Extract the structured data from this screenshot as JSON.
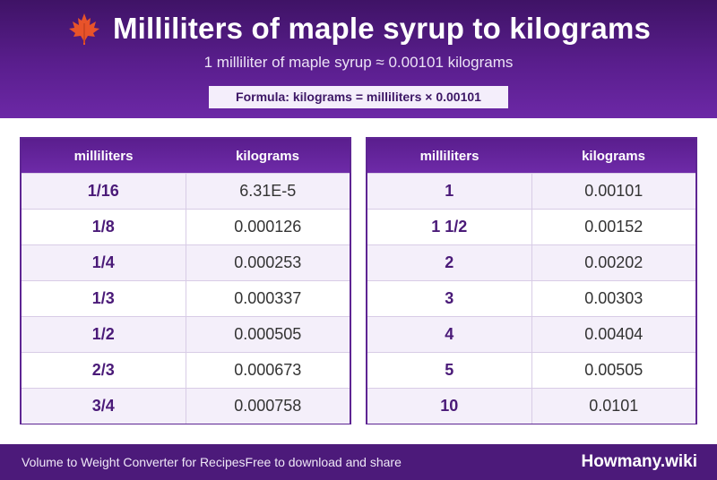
{
  "header": {
    "icon": "maple-leaf-icon",
    "title": "Milliliters of maple syrup to kilograms",
    "subtitle": "1 milliliter of maple syrup ≈ 0.00101 kilograms",
    "formula": "Formula: kilograms = milliliters × 0.00101"
  },
  "tables": [
    {
      "headers": [
        "milliliters",
        "kilograms"
      ],
      "rows": [
        [
          "1/16",
          "6.31E-5"
        ],
        [
          "1/8",
          "0.000126"
        ],
        [
          "1/4",
          "0.000253"
        ],
        [
          "1/3",
          "0.000337"
        ],
        [
          "1/2",
          "0.000505"
        ],
        [
          "2/3",
          "0.000673"
        ],
        [
          "3/4",
          "0.000758"
        ]
      ]
    },
    {
      "headers": [
        "milliliters",
        "kilograms"
      ],
      "rows": [
        [
          "1",
          "0.00101"
        ],
        [
          "1 1/2",
          "0.00152"
        ],
        [
          "2",
          "0.00202"
        ],
        [
          "3",
          "0.00303"
        ],
        [
          "4",
          "0.00404"
        ],
        [
          "5",
          "0.00505"
        ],
        [
          "10",
          "0.0101"
        ]
      ]
    }
  ],
  "footer": {
    "left": "Volume to Weight Converter for Recipes",
    "middle": "Free to download and share",
    "brand": "Howmany.wiki"
  },
  "colors": {
    "header_bg": "#5a1e8e",
    "accent": "#4a1a78",
    "leaf": "#e8532a"
  }
}
